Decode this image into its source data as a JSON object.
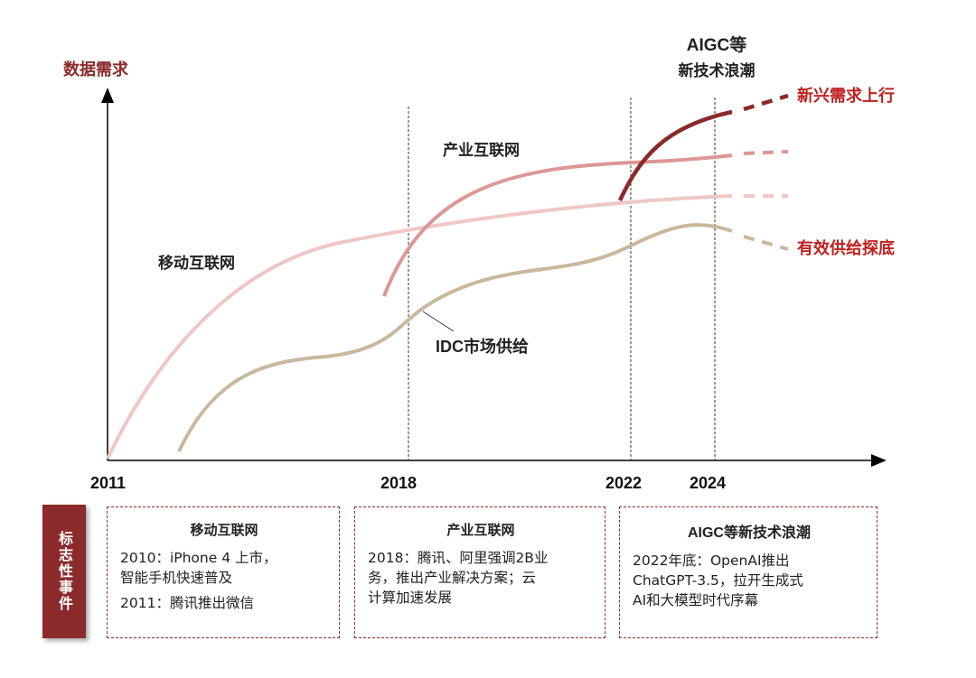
{
  "y_axis_label": "数据需求",
  "years": [
    "2011",
    "2018",
    "2022",
    "2024"
  ],
  "curve_labels": {
    "mobile": "移动互联网",
    "industrial": "产业互联网",
    "idc": "IDC市场供给",
    "aigc_line1": "AIGC等",
    "aigc_line2": "新技术浪潮",
    "demand_up": "新兴需求上行",
    "supply_bottom": "有效供给探底"
  },
  "colors": {
    "mobile": "#efc7c4",
    "industrial": "#dd9796",
    "aigc": "#8b2a2a",
    "idc": "#c9b89d",
    "accent": "#c0201f",
    "box_border": "#8b2a2a"
  },
  "events": {
    "side_label": "标志性事件",
    "boxes": [
      {
        "title": "移动互联网",
        "lines": [
          "2010：iPhone 4 上市，\n智能手机快速普及",
          "2011：腾讯推出微信"
        ]
      },
      {
        "title": "产业互联网",
        "lines": [
          "2018：腾讯、阿里强调2B业\n务，推出产业解决方案；云\n计算加速发展"
        ]
      },
      {
        "title": "AIGC等新技术浪潮",
        "lines": [
          "2022年底：OpenAI推出\nChatGPT-3.5，拉开生成式\nAI和大模型时代序幕"
        ]
      }
    ]
  }
}
